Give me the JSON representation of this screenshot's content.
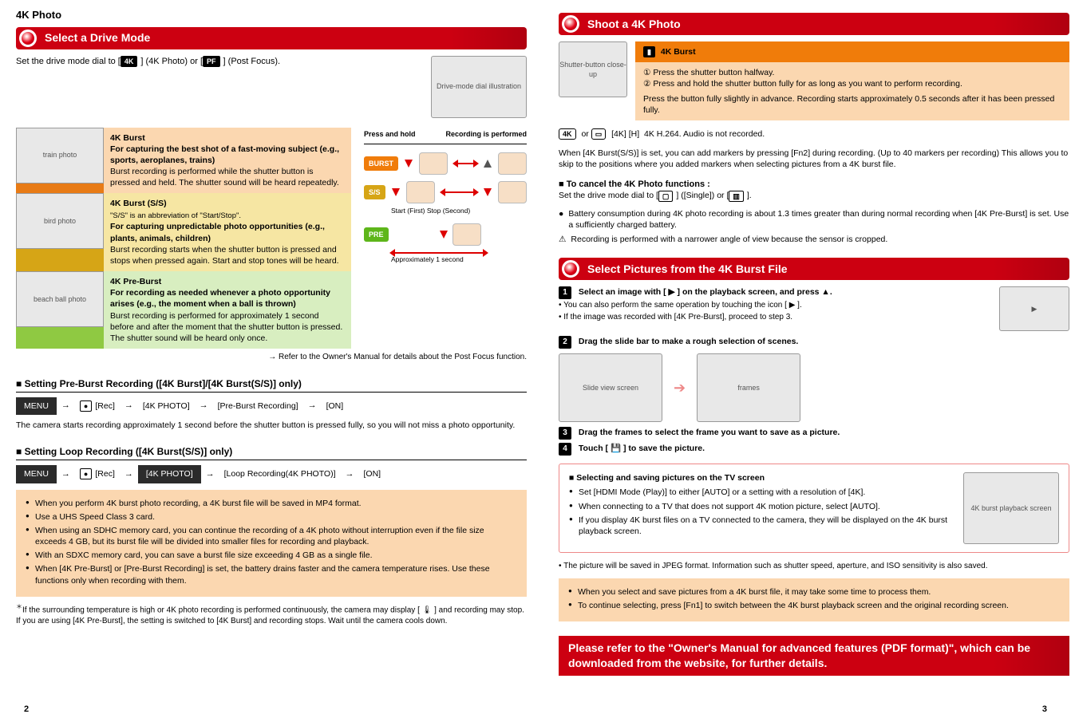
{
  "colors": {
    "red": "#cc0011",
    "peach": "#fbd7b0",
    "orange": "#f07c0a",
    "mustard": "#d6a516",
    "green": "#8fc942",
    "green_tag": "#5eb61a"
  },
  "left": {
    "breadcrumb": "4K Photo",
    "heading1": "Select a Drive Mode",
    "intro": {
      "line1_pre": "Set the drive mode dial to [",
      "line1_icon": "4K",
      "line1_mid": "] (4K Photo) or [",
      "line1_icon2": "PF",
      "line1_post": "] (Post Focus).",
      "img_alt": "Drive-mode dial illustration"
    },
    "table": {
      "rows": [
        {
          "key": "burst",
          "title": "4K Burst",
          "desc": "For capturing the best shot of a fast-moving subject\n(e.g., sports, aeroplanes, trains)",
          "detail": "Burst recording is performed while the shutter button is pressed and held.\nThe shutter sound will be heard repeatedly.",
          "img_alt": "train photo"
        },
        {
          "key": "preburst",
          "title": "4K Burst (S/S)",
          "subtitle": "\"S/S\" is an abbreviation of \"Start/Stop\".",
          "desc": "For capturing unpredictable photo opportunities\n(e.g., plants, animals, children)",
          "detail": "Burst recording starts when the shutter button is pressed and stops when pressed again. Start and stop tones will be heard.",
          "img_alt": "bird photo"
        },
        {
          "key": "postfocus",
          "title": "4K Pre-Burst",
          "desc": "For recording as needed whenever a photo opportunity arises\n(e.g., the moment when a ball is thrown)",
          "detail": "Burst recording is performed for approximately 1 second before and after the moment that the shutter button is pressed. The shutter sound will be heard only once.",
          "img_alt": "beach ball photo"
        }
      ]
    },
    "diagram": {
      "axis_left": "Press and hold",
      "axis_right": "Recording is performed",
      "row1_tag": "BURST",
      "row2_tag": "S/S",
      "row2_right": "Start (First)   Stop (Second)",
      "row3_tag": "PRE",
      "row3_caption": "Approximately 1 second"
    },
    "table_ref": "→ Refer to the Owner's Manual for details about the Post Focus function.",
    "sect1_title": "■ Setting Pre-Burst Recording ([4K Burst]/[4K Burst(S/S)] only)",
    "sect1_menu": {
      "a": "MENU",
      "b": "[Rec]",
      "c": "[4K PHOTO]",
      "d": "[Pre-Burst Recording]",
      "e": "[ON]"
    },
    "sect1_text": "The camera starts recording approximately 1 second before the shutter button is pressed fully, so you will not miss a photo opportunity.",
    "sect2_title": "■ Setting Loop Recording ([4K Burst(S/S)] only)",
    "sect2_menu": {
      "a": "MENU",
      "b": "[Rec]",
      "c": "[4K PHOTO]",
      "d": "[Loop Recording(4K PHOTO)]",
      "e": "[ON]"
    },
    "note_peach": [
      "When you perform 4K burst photo recording, a 4K burst file will be saved in MP4 format.",
      "Use a UHS Speed Class 3 card.",
      "When using an SDHC memory card, you can continue the recording of a 4K photo without interruption even if the file size exceeds 4 GB, but its burst file will be divided into smaller files for recording and playback.",
      "With an SDXC memory card, you can save a burst file size exceeding 4 GB as a single file.",
      "When [4K Pre-Burst] or [Pre-Burst Recording] is set, the battery drains faster and the camera temperature rises. Use these functions only when recording with them."
    ],
    "footnote_star": "If the surrounding temperature is high or 4K photo recording is performed continuously, the camera may display [ 🌡 ] and recording may stop. If you are using [4K Pre-Burst], the setting is switched to [4K Burst] and recording stops. Wait until the camera cools down.",
    "page_num": "2"
  },
  "right": {
    "heading2": "Shoot a 4K Photo",
    "steps_img_alt": "Shutter-button close-up",
    "steps": {
      "row1": "4K Burst",
      "row2_items": [
        "① Press the shutter button halfway.",
        "② Press and hold the shutter button fully for as long as you want to perform recording."
      ],
      "row2_note": "Press the button fully slightly in advance. Recording starts approximately 0.5 seconds after it has been pressed fully."
    },
    "icons_line1": "[4K] [H]  4K H.264. Audio is not recorded.",
    "icons_line1_pre": "or",
    "icons_line2": "When [4K Burst(S/S)] is set, you can add markers by pressing [Fn2] during recording. (Up to 40 markers per recording) This allows you to skip to the positions where you added markers when selecting pictures from a 4K burst file.",
    "cancel_title": "■ To cancel the 4K Photo functions :",
    "cancel_text_pre": "Set the drive mode dial to [",
    "cancel_icon1": "SINGLE",
    "cancel_text_mid": "] ([Single]) or [",
    "cancel_icon2": "BURST",
    "cancel_text_post": "].",
    "battery_text": "Battery consumption during 4K photo recording is about 1.3 times greater than during normal recording when [4K Pre-Burst] is set. Use a sufficiently charged battery.",
    "angle_text": "Recording is performed with a narrower angle of view because the sensor is cropped.",
    "heading3": "Select Pictures from the 4K Burst File",
    "step1_text": "Select an image with [ ▶ ] on the playback screen, and press ▲.",
    "step1_sub": "You can also perform the same operation by touching the icon [ ▶ ].",
    "step1_sub2": "If the image was recorded with [4K Pre-Burst], proceed to step 3.",
    "step2_text": "Drag the slide bar to make a rough selection of scenes.",
    "step2_thumb_alt": "Slide view screen",
    "step3_text": "Drag the frames to select the frame you want to save as a picture.",
    "step4_text": "Touch [ 💾 ] to save the picture.",
    "framed_title": "■ Selecting and saving pictures on the TV screen",
    "framed_items": [
      "Set [HDMI Mode (Play)] to either [AUTO] or a setting with a resolution of [4K].",
      "When connecting to a TV that does not support 4K motion picture, select [AUTO].",
      "If you display 4K burst files on a TV connected to the camera, they will be displayed on the 4K burst playback screen."
    ],
    "framed_img_alt": "4K burst playback screen",
    "footnote2": "The picture will be saved in JPEG format. Information such as shutter speed, aperture, and ISO sensitivity is also saved.",
    "note_peach2": [
      "When you select and save pictures from a 4K burst file, it may take some time to process them.",
      "To continue selecting, press [Fn1] to switch between the 4K burst playback screen and the original recording screen."
    ],
    "redbar_full": "Please refer to the \"Owner's Manual for advanced features (PDF format)\", which can be downloaded from the website, for further details.",
    "page_num": "3"
  }
}
